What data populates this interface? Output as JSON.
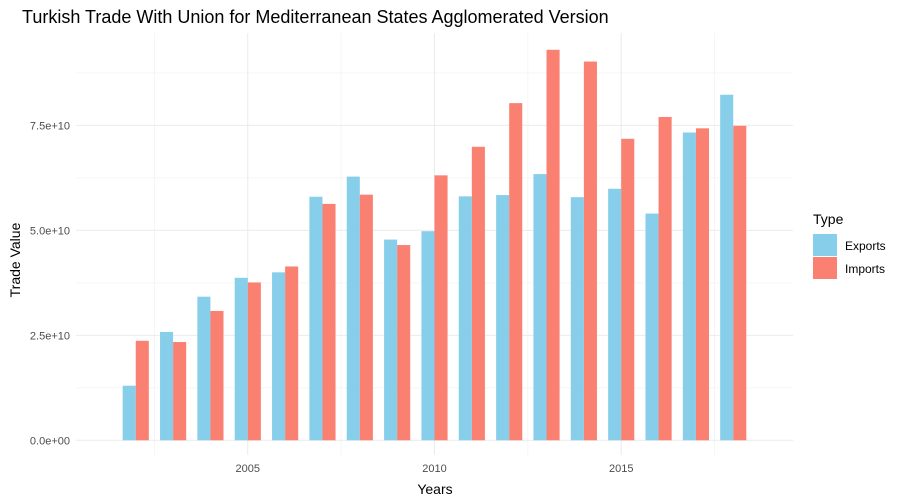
{
  "chart_data": {
    "type": "bar",
    "title": "Turkish Trade With Union for Mediterranean States Agglomerated Version",
    "xlabel": "Years",
    "ylabel": "Trade Value",
    "x": [
      2002,
      2003,
      2004,
      2005,
      2006,
      2007,
      2008,
      2009,
      2010,
      2011,
      2012,
      2013,
      2014,
      2015,
      2016,
      2017,
      2018
    ],
    "xlim": [
      2000.4,
      2019.6
    ],
    "ylim": [
      -3500000000,
      97000000000
    ],
    "x_ticks": [
      2005,
      2010,
      2015
    ],
    "x_tick_labels": [
      "2005",
      "2010",
      "2015"
    ],
    "y_ticks": [
      0,
      25000000000,
      50000000000,
      75000000000
    ],
    "y_tick_labels": [
      "0.0e+00",
      "2.5e+10",
      "5.0e+10",
      "7.5e+10"
    ],
    "grid": true,
    "legend": {
      "title": "Type",
      "position": "right"
    },
    "series": [
      {
        "name": "Exports",
        "color": "#87CEEB",
        "values": [
          13000000000,
          25800000000,
          34200000000,
          38700000000,
          40000000000,
          58000000000,
          62800000000,
          47800000000,
          49800000000,
          58100000000,
          58400000000,
          63400000000,
          57900000000,
          59900000000,
          54000000000,
          73300000000,
          82300000000
        ]
      },
      {
        "name": "Imports",
        "color": "#FA8072",
        "values": [
          23700000000,
          23400000000,
          30800000000,
          37600000000,
          41400000000,
          56300000000,
          58500000000,
          46500000000,
          63100000000,
          69900000000,
          80300000000,
          93000000000,
          90200000000,
          71800000000,
          77000000000,
          74300000000,
          74900000000
        ]
      }
    ]
  }
}
